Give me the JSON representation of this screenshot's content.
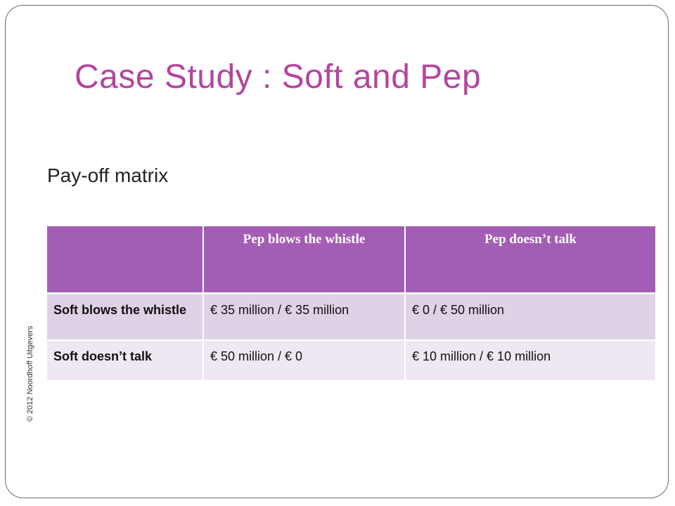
{
  "slide": {
    "title": "Case Study : Soft and Pep",
    "subtitle": "Pay-off matrix",
    "copyright": "© 2012 Noordhoff Uitgevers"
  },
  "table": {
    "headers": [
      "",
      "Pep blows the whistle",
      "Pep doesn’t talk"
    ],
    "rows": [
      {
        "label": "Soft blows the whistle",
        "cells": [
          "€ 35 million / € 35 million",
          "€ 0 / € 50 million"
        ]
      },
      {
        "label": "Soft doesn’t talk",
        "cells": [
          "€ 50 million / € 0",
          "€ 10 million / € 10 million"
        ]
      }
    ]
  },
  "colors": {
    "title": "#b4449f",
    "header_bg": "#a45db4",
    "row1_bg": "#dfd1e6",
    "row2_bg": "#efe8f2"
  }
}
